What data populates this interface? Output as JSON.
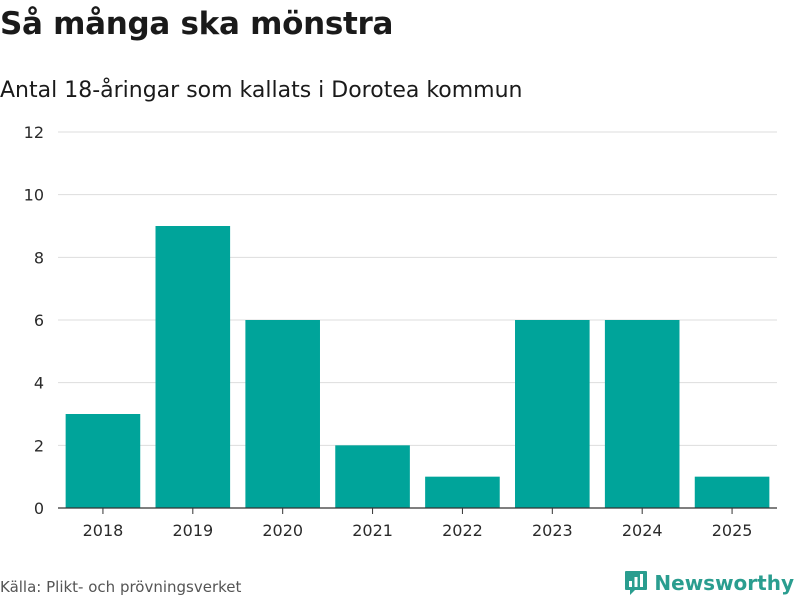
{
  "header": {
    "title": "Så många ska mönstra",
    "subtitle": "Antal 18-åringar som kallats i Dorotea kommun"
  },
  "footer": {
    "source": "Källa: Plikt- och prövningsverket",
    "brand": "Newsworthy"
  },
  "colors": {
    "bar": "#00a49a",
    "grid": "#dddddd",
    "axis": "#333333",
    "brand": "#2a9d8f"
  },
  "icons": {
    "brand": "bar-chart-speech-bubble-icon"
  },
  "chart_data": {
    "type": "bar",
    "title": "Så många ska mönstra",
    "subtitle": "Antal 18-åringar som kallats i Dorotea kommun",
    "xlabel": "",
    "ylabel": "",
    "categories": [
      "2018",
      "2019",
      "2020",
      "2021",
      "2022",
      "2023",
      "2024",
      "2025"
    ],
    "values": [
      3,
      9,
      6,
      2,
      1,
      6,
      6,
      1
    ],
    "ylim": [
      0,
      12
    ],
    "yticks": [
      0,
      2,
      4,
      6,
      8,
      10,
      12
    ],
    "yticks_labels": [
      "0",
      "2",
      "4",
      "6",
      "8",
      "10",
      "12"
    ],
    "grid": true,
    "legend": "none"
  }
}
